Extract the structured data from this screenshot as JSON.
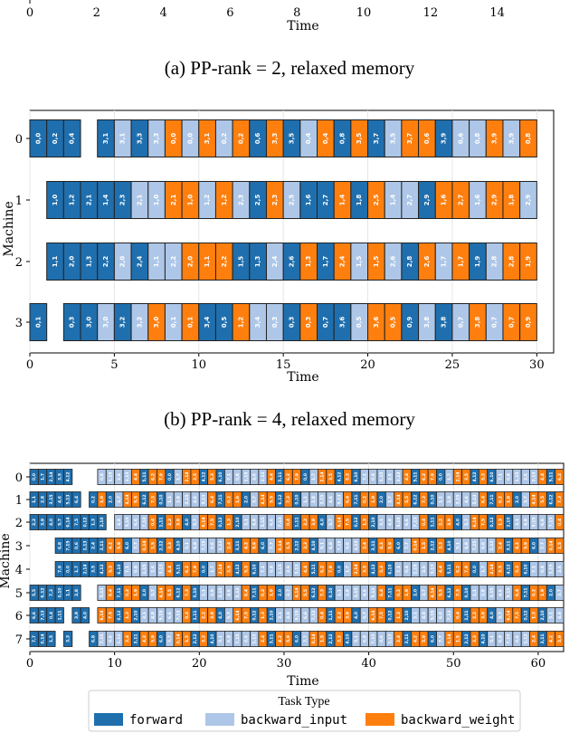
{
  "captions": {
    "a": "(a) PP-rank = 2, relaxed memory",
    "b": "(b) PP-rank = 4, relaxed memory"
  },
  "legend": {
    "title": "Task Type",
    "entries": [
      "forward",
      "backward_input",
      "backward_weight"
    ]
  },
  "colors": {
    "forward": "#1f6fae",
    "backward_input": "#aec7e8",
    "backward_weight": "#ff7f0e"
  },
  "chart_data": [
    {
      "type": "gantt",
      "id": "top-partial",
      "xlabel": "Time",
      "xticks": [
        0,
        2,
        4,
        6,
        8,
        10,
        12,
        14
      ],
      "xlim": [
        0,
        15.5
      ]
    },
    {
      "type": "gantt",
      "id": "pp4",
      "xlabel": "Time",
      "ylabel": "Machine",
      "xlim": [
        0,
        31
      ],
      "xticks": [
        0,
        5,
        10,
        15,
        20,
        25,
        30
      ],
      "machines": [
        0,
        1,
        2,
        3
      ],
      "rows": [
        {
          "machine": 0,
          "tasks": [
            [
              "F",
              "0,0",
              0
            ],
            [
              "F",
              "0,2",
              1
            ],
            [
              "F",
              "0,4",
              2
            ],
            [
              "F",
              "3,1",
              4
            ],
            [
              "B",
              "3,1",
              5
            ],
            [
              "F",
              "3,3",
              6
            ],
            [
              "B",
              "3,3",
              7
            ],
            [
              "W",
              "0,0",
              8
            ],
            [
              "B",
              "0,0",
              9
            ],
            [
              "W",
              "3,1",
              10
            ],
            [
              "B",
              "0,2",
              11
            ],
            [
              "W",
              "0,2",
              12
            ],
            [
              "F",
              "0,6",
              13
            ],
            [
              "W",
              "3,3",
              14
            ],
            [
              "F",
              "3,5",
              15
            ],
            [
              "B",
              "0,4",
              16
            ],
            [
              "W",
              "0,4",
              17
            ],
            [
              "F",
              "0,8",
              18
            ],
            [
              "W",
              "3,5",
              19
            ],
            [
              "F",
              "3,7",
              20
            ],
            [
              "B",
              "3,5",
              21
            ],
            [
              "W",
              "3,7",
              22
            ],
            [
              "W",
              "0,6",
              23
            ],
            [
              "F",
              "3,9",
              24
            ],
            [
              "B",
              "0,6",
              25
            ],
            [
              "B",
              "0,8",
              26
            ],
            [
              "W",
              "3,9",
              27
            ],
            [
              "B",
              "3,9",
              28
            ],
            [
              "W",
              "0,8",
              29
            ]
          ]
        },
        {
          "machine": 1,
          "tasks": [
            [
              "F",
              "1,0",
              1
            ],
            [
              "F",
              "1,2",
              2
            ],
            [
              "F",
              "2,1",
              3
            ],
            [
              "F",
              "1,4",
              4
            ],
            [
              "F",
              "2,3",
              5
            ],
            [
              "B",
              "2,1",
              6
            ],
            [
              "B",
              "1,0",
              7
            ],
            [
              "W",
              "2,1",
              8
            ],
            [
              "W",
              "1,0",
              9
            ],
            [
              "B",
              "1,2",
              10
            ],
            [
              "W",
              "1,2",
              11
            ],
            [
              "B",
              "2,3",
              12
            ],
            [
              "F",
              "2,5",
              13
            ],
            [
              "W",
              "2,3",
              14
            ],
            [
              "B",
              "2,5",
              15
            ],
            [
              "F",
              "1,6",
              16
            ],
            [
              "F",
              "2,7",
              17
            ],
            [
              "W",
              "1,4",
              18
            ],
            [
              "F",
              "1,8",
              19
            ],
            [
              "W",
              "2,5",
              20
            ],
            [
              "B",
              "1,4",
              21
            ],
            [
              "B",
              "2,7",
              22
            ],
            [
              "F",
              "2,9",
              23
            ],
            [
              "W",
              "1,6",
              24
            ],
            [
              "W",
              "2,7",
              25
            ],
            [
              "B",
              "1,6",
              26
            ],
            [
              "W",
              "2,9",
              27
            ],
            [
              "W",
              "1,8",
              28
            ],
            [
              "B",
              "2,9",
              29
            ]
          ]
        },
        {
          "machine": 2,
          "tasks": [
            [
              "F",
              "1,1",
              1
            ],
            [
              "F",
              "2,0",
              2
            ],
            [
              "F",
              "1,3",
              3
            ],
            [
              "F",
              "2,2",
              4
            ],
            [
              "B",
              "2,0",
              5
            ],
            [
              "F",
              "2,4",
              6
            ],
            [
              "B",
              "1,1",
              7
            ],
            [
              "B",
              "2,2",
              8
            ],
            [
              "W",
              "2,0",
              9
            ],
            [
              "W",
              "1,1",
              10
            ],
            [
              "W",
              "2,2",
              11
            ],
            [
              "F",
              "1,5",
              12
            ],
            [
              "F",
              "1,3",
              13
            ],
            [
              "B",
              "2,4",
              14
            ],
            [
              "F",
              "2,6",
              15
            ],
            [
              "W",
              "1,3",
              16
            ],
            [
              "F",
              "1,7",
              17
            ],
            [
              "W",
              "2,4",
              18
            ],
            [
              "B",
              "1,5",
              19
            ],
            [
              "W",
              "1,5",
              20
            ],
            [
              "B",
              "2,6",
              21
            ],
            [
              "F",
              "2,8",
              22
            ],
            [
              "W",
              "2,6",
              23
            ],
            [
              "B",
              "1,7",
              24
            ],
            [
              "W",
              "1,7",
              25
            ],
            [
              "F",
              "1,9",
              26
            ],
            [
              "B",
              "2,8",
              27
            ],
            [
              "W",
              "2,8",
              28
            ],
            [
              "W",
              "1,9",
              29
            ]
          ]
        },
        {
          "machine": 3,
          "tasks": [
            [
              "F",
              "0,1",
              0
            ],
            [
              "F",
              "0,3",
              2
            ],
            [
              "F",
              "3,0",
              3
            ],
            [
              "B",
              "3,0",
              4
            ],
            [
              "F",
              "3,2",
              5
            ],
            [
              "B",
              "3,2",
              6
            ],
            [
              "W",
              "3,0",
              7
            ],
            [
              "B",
              "0,1",
              8
            ],
            [
              "W",
              "0,1",
              9
            ],
            [
              "F",
              "3,4",
              10
            ],
            [
              "F",
              "0,5",
              11
            ],
            [
              "W",
              "1,2",
              12
            ],
            [
              "B",
              "3,4",
              13
            ],
            [
              "B",
              "0,3",
              14
            ],
            [
              "F",
              "0,3",
              15
            ],
            [
              "W",
              "0,3",
              16
            ],
            [
              "F",
              "0,7",
              17
            ],
            [
              "F",
              "3,6",
              18
            ],
            [
              "B",
              "0,5",
              19
            ],
            [
              "W",
              "3,6",
              20
            ],
            [
              "W",
              "0,5",
              21
            ],
            [
              "F",
              "0,9",
              22
            ],
            [
              "B",
              "3,8",
              23
            ],
            [
              "F",
              "3,8",
              24
            ],
            [
              "B",
              "0,7",
              25
            ],
            [
              "W",
              "3,8",
              26
            ],
            [
              "B",
              "0,7",
              27
            ],
            [
              "W",
              "0,7",
              28
            ],
            [
              "W",
              "0,9",
              29
            ]
          ]
        }
      ]
    },
    {
      "type": "gantt",
      "id": "pp8",
      "xlabel": "Time",
      "ylabel": "Machine",
      "xlim": [
        0,
        63
      ],
      "xticks": [
        0,
        10,
        20,
        30,
        40,
        50,
        60
      ],
      "machines": [
        0,
        1,
        2,
        3,
        4,
        5,
        6,
        7
      ],
      "row_ranges": [
        {
          "machine": 0,
          "gaps": [
            [
              5,
              8
            ]
          ],
          "end": 63
        },
        {
          "machine": 1,
          "gaps": [
            [
              6,
              7
            ]
          ],
          "end": 63
        },
        {
          "machine": 2,
          "gaps": [
            [
              9,
              9.5
            ]
          ],
          "end": 63
        },
        {
          "machine": 3,
          "start": 3,
          "end": 63
        },
        {
          "machine": 4,
          "start": 3,
          "end": 63
        },
        {
          "machine": 5,
          "gaps": [
            [
              6,
              7.5
            ]
          ],
          "end": 63
        },
        {
          "machine": 6,
          "gaps": [
            [
              4,
              5
            ],
            [
              7,
              8
            ]
          ],
          "end": 63
        },
        {
          "machine": 7,
          "gaps": [
            [
              3,
              4
            ],
            [
              5,
              7
            ]
          ],
          "end": 63
        }
      ]
    }
  ]
}
